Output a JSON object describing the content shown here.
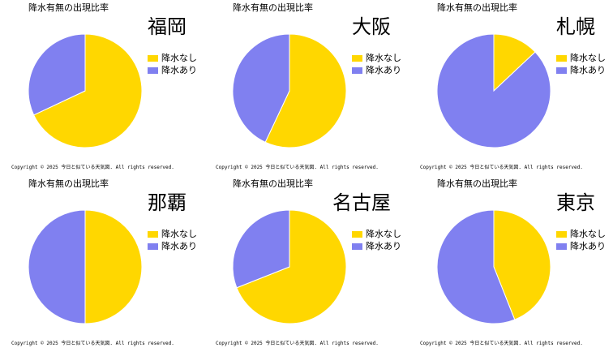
{
  "chart_data": [
    {
      "type": "pie",
      "title": "福岡",
      "subtitle": "降水有無の出現比率",
      "categories": [
        "降水なし",
        "降水あり"
      ],
      "values": [
        68,
        32
      ],
      "colors": [
        "#ffd700",
        "#8080f0"
      ],
      "legend": "right",
      "start_angle_deg": 90,
      "direction": "clockwise"
    },
    {
      "type": "pie",
      "title": "大阪",
      "subtitle": "降水有無の出現比率",
      "categories": [
        "降水なし",
        "降水あり"
      ],
      "values": [
        57,
        43
      ],
      "colors": [
        "#ffd700",
        "#8080f0"
      ],
      "legend": "right",
      "start_angle_deg": 90,
      "direction": "clockwise"
    },
    {
      "type": "pie",
      "title": "札幌",
      "subtitle": "降水有無の出現比率",
      "categories": [
        "降水なし",
        "降水あり"
      ],
      "values": [
        13,
        87
      ],
      "colors": [
        "#ffd700",
        "#8080f0"
      ],
      "legend": "right",
      "start_angle_deg": 90,
      "direction": "clockwise"
    },
    {
      "type": "pie",
      "title": "那覇",
      "subtitle": "降水有無の出現比率",
      "categories": [
        "降水なし",
        "降水あり"
      ],
      "values": [
        50,
        50
      ],
      "colors": [
        "#ffd700",
        "#8080f0"
      ],
      "legend": "right",
      "start_angle_deg": 90,
      "direction": "clockwise"
    },
    {
      "type": "pie",
      "title": "名古屋",
      "subtitle": "降水有無の出現比率",
      "categories": [
        "降水なし",
        "降水あり"
      ],
      "values": [
        69,
        31
      ],
      "colors": [
        "#ffd700",
        "#8080f0"
      ],
      "legend": "right",
      "start_angle_deg": 90,
      "direction": "clockwise"
    },
    {
      "type": "pie",
      "title": "東京",
      "subtitle": "降水有無の出現比率",
      "categories": [
        "降水なし",
        "降水あり"
      ],
      "values": [
        44,
        56
      ],
      "colors": [
        "#ffd700",
        "#8080f0"
      ],
      "legend": "right",
      "start_angle_deg": 90,
      "direction": "clockwise"
    }
  ],
  "footer": {
    "copyright": "Copyright ©  2025  今日と似ている天気図. All rights reserved."
  }
}
